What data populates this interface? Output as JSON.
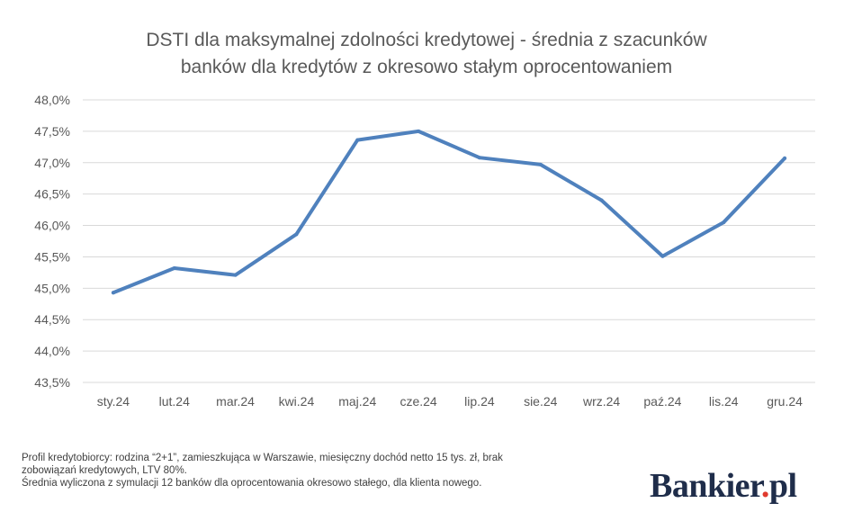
{
  "chart_data": {
    "type": "line",
    "title_line1": "DSTI dla maksymalnej zdolności kredytowej - średnia z szacunków",
    "title_line2": "banków dla kredytów z okresowo stałym oprocentowaniem",
    "categories": [
      "sty.24",
      "lut.24",
      "mar.24",
      "kwi.24",
      "maj.24",
      "cze.24",
      "lip.24",
      "sie.24",
      "wrz.24",
      "paź.24",
      "lis.24",
      "gru.24"
    ],
    "series": [
      {
        "values": [
          44.93,
          45.32,
          45.21,
          45.86,
          47.36,
          47.5,
          47.08,
          46.97,
          46.4,
          45.51,
          46.05,
          47.07
        ]
      }
    ],
    "ylim": [
      43.5,
      48.0
    ],
    "yticks": [
      "43,5%",
      "44,0%",
      "44,5%",
      "45,0%",
      "45,5%",
      "46,0%",
      "46,5%",
      "47,0%",
      "47,5%",
      "48,0%"
    ],
    "ytick_values": [
      43.5,
      44.0,
      44.5,
      45.0,
      45.5,
      46.0,
      46.5,
      47.0,
      47.5,
      48.0
    ],
    "grid": true,
    "legend": "none",
    "line_color": "#4f81bd",
    "grid_color": "#d9d9d9"
  },
  "notes": {
    "line1": "Profil kredytobiorcy: rodzina “2+1”, zamieszkująca w Warszawie, miesięczny dochód netto 15 tys. zł, brak",
    "line2": "zobowiązań kredytowych, LTV 80%.",
    "line3": "Średnia wyliczona z symulacji 12 banków dla oprocentowania okresowo stałego, dla klienta nowego."
  },
  "logo": {
    "main": "Bankier",
    "dot": ".",
    "suffix": "pl"
  }
}
